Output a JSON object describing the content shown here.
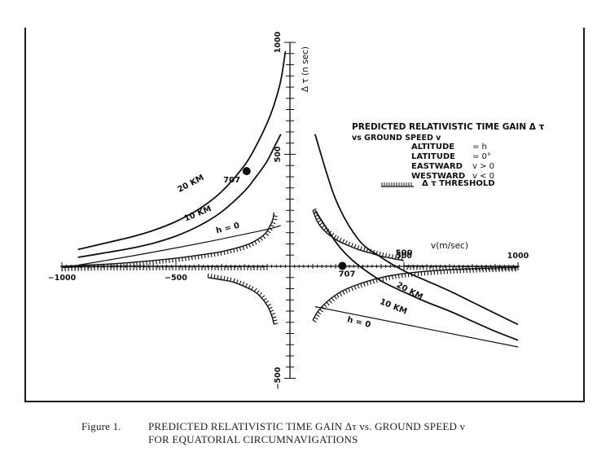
{
  "chart_data": {
    "type": "line",
    "x_axis": {
      "label": "v(m/sec)",
      "range": [
        -1000,
        1000
      ],
      "major_ticks": [
        -1000,
        -500,
        500,
        1000
      ],
      "tick_labels": [
        "−1000",
        "−500",
        "500",
        "1000"
      ],
      "minor_step": 100
    },
    "y_axis": {
      "label": "Δ τ (n sec)",
      "range": [
        -500,
        1000
      ],
      "major_ticks": [
        -500,
        500,
        1000
      ],
      "tick_labels": [
        "−500",
        "500",
        "1000"
      ],
      "minor_step": 100
    },
    "legend": {
      "title_line1": "PREDICTED RELATIVISTIC TIME GAIN Δ τ",
      "title_line2": "vs GROUND SPEED v",
      "rows": [
        {
          "name": "ALTITUDE",
          "value": "= h"
        },
        {
          "name": "LATITUDE",
          "value": "= 0°"
        },
        {
          "name": "EASTWARD",
          "value": "v > 0"
        },
        {
          "name": "WESTWARD",
          "value": "v < 0"
        }
      ],
      "threshold_label": "Δ τ THRESHOLD"
    },
    "series": [
      {
        "name": "20 KM",
        "branch": "west",
        "x": [
          -930,
          -800,
          -700,
          -600,
          -500,
          -400,
          -300,
          -200,
          -150,
          -100,
          -70,
          -40,
          -20
        ],
        "y": [
          75,
          106,
          130,
          160,
          200,
          255,
          333,
          450,
          535,
          640,
          720,
          830,
          960
        ]
      },
      {
        "name": "10 KM",
        "branch": "west",
        "x": [
          -930,
          -800,
          -700,
          -600,
          -500,
          -400,
          -300,
          -200,
          -150,
          -100,
          -70,
          -40
        ],
        "y": [
          40,
          62,
          80,
          103,
          135,
          180,
          243,
          335,
          398,
          470,
          530,
          590
        ]
      },
      {
        "name": "h = 0",
        "branch": "west",
        "x": [
          -930,
          -700,
          -500,
          -300,
          -100,
          -40
        ],
        "y": [
          5,
          45,
          82,
          122,
          165,
          182
        ]
      },
      {
        "name": "20 KM",
        "branch": "east",
        "x": [
          110,
          200,
          300,
          400,
          500,
          600,
          700,
          800,
          900,
          1000
        ],
        "y": [
          590,
          300,
          120,
          40,
          -20,
          -65,
          -110,
          -160,
          -210,
          -260
        ]
      },
      {
        "name": "10 KM",
        "branch": "east",
        "x": [
          110,
          200,
          250,
          300,
          400,
          500,
          600,
          700,
          800,
          900,
          1000
        ],
        "y": [
          250,
          110,
          50,
          5,
          -65,
          -115,
          -160,
          -200,
          -245,
          -290,
          -330
        ]
      },
      {
        "name": "h = 0",
        "branch": "east",
        "x": [
          110,
          1000
        ],
        "y": [
          -180,
          -360
        ]
      }
    ],
    "threshold_curves": [
      {
        "x": [
          -360,
          -300,
          -250,
          -200,
          -160,
          -130,
          -100,
          -80,
          -70
        ],
        "y": [
          -50,
          -60,
          -70,
          -90,
          -110,
          -135,
          -175,
          -220,
          -260
        ]
      },
      {
        "x": [
          -1000,
          -900,
          -800,
          -700,
          -600,
          -500,
          -400,
          -300,
          -200,
          -150,
          -110,
          -90,
          -75,
          -70
        ],
        "y": [
          0,
          5,
          10,
          17,
          26,
          36,
          50,
          66,
          92,
          115,
          145,
          175,
          210,
          240
        ]
      },
      {
        "x": [
          100,
          120,
          150,
          200,
          250,
          300,
          350,
          400,
          450,
          500
        ],
        "y": [
          250,
          200,
          160,
          120,
          95,
          75,
          60,
          45,
          35,
          25
        ]
      },
      {
        "x": [
          100,
          120,
          150,
          200,
          250,
          300,
          350,
          400,
          450,
          500,
          600,
          700,
          800,
          900,
          1000
        ],
        "y": [
          -240,
          -205,
          -170,
          -128,
          -100,
          -80,
          -64,
          -50,
          -40,
          -32,
          -22,
          -15,
          -10,
          -7,
          -5
        ]
      },
      {
        "x": [
          -1000,
          -950,
          -900,
          -850,
          -800,
          -750,
          -700,
          -650,
          -600,
          -550,
          -500,
          -450,
          -400,
          -350,
          -300,
          -250,
          -200,
          -150,
          -100
        ],
        "y": [
          -5,
          -3,
          -2,
          -1,
          0,
          0,
          0,
          0,
          0,
          0,
          0,
          0,
          0,
          0,
          0,
          0,
          0,
          0,
          0
        ]
      },
      {
        "x": [
          500,
          550,
          600,
          650,
          700,
          750,
          800,
          850,
          900,
          950,
          1000
        ],
        "y": [
          2,
          2,
          1,
          1,
          0,
          0,
          0,
          0,
          0,
          0,
          0
        ]
      }
    ],
    "points": [
      {
        "label": "707",
        "x": -190,
        "y": 425
      },
      {
        "label": "707",
        "x": 230,
        "y": 2
      }
    ],
    "inline_labels": [
      {
        "text": "20 KM",
        "x": -430,
        "y": 360
      },
      {
        "text": "10 KM",
        "x": -400,
        "y": 225
      },
      {
        "text": "h = 0",
        "x": -270,
        "y": 160
      },
      {
        "text": "707",
        "x": -255,
        "y": 375
      },
      {
        "text": "500",
        "x": 500,
        "y": 50
      },
      {
        "text": "707",
        "x": 250,
        "y": -45
      },
      {
        "text": "20 KM",
        "x": 520,
        "y": -120
      },
      {
        "text": "10 KM",
        "x": 450,
        "y": -190
      },
      {
        "text": "h = 0",
        "x": 300,
        "y": -260
      }
    ],
    "grid": false
  },
  "caption": {
    "label": "Figure 1.",
    "line1": "PREDICTED RELATIVISTIC TIME GAIN Δτ vs. GROUND SPEED v",
    "line2": "FOR EQUATORIAL CIRCUMNAVIGATIONS"
  }
}
